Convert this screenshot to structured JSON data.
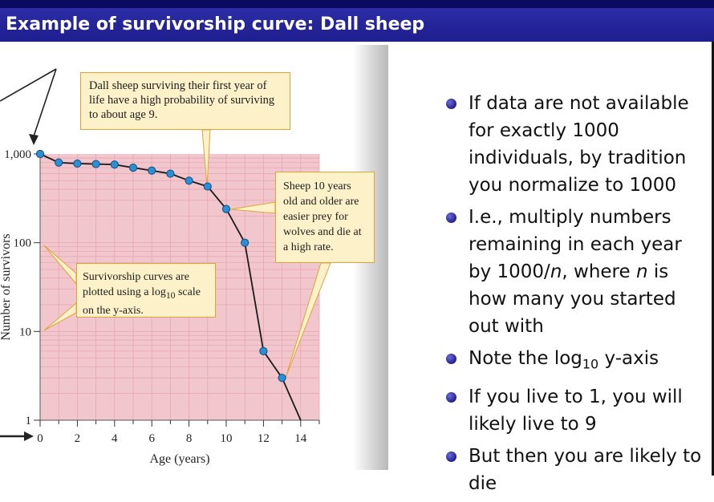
{
  "slide": {
    "title": "Example of survivorship curve: Dall sheep"
  },
  "bullets": [
    "If data are not available for exactly 1000 individuals, by tradition you normalize to 1000",
    "I.e., multiply numbers remaining in each year by 1000/n, where n is how many you started out with",
    "Note the log10 y-axis",
    "If you live to 1, you will likely live to 9",
    "But then you are likely to die"
  ],
  "callouts": {
    "top": "Dall sheep surviving their first year of life have a high probability of surviving to about age 9.",
    "right": "Sheep 10 years old and older are easier prey for wolves and die at a high rate.",
    "left_prefix": "Survivorship curves are plotted using a log",
    "left_sub": "10",
    "left_suffix": " scale on the y-axis."
  },
  "colors": {
    "plot_bg": "#f2c6cd",
    "grid": "#e8a7b1",
    "marker": "#2d8fd3",
    "callout_bg": "#fdf1c9",
    "callout_border": "#e0a33a",
    "title_bar": "#1e1e8e"
  },
  "chart_data": {
    "type": "line",
    "title": "",
    "xlabel": "Age (years)",
    "ylabel": "Number of survivors",
    "yscale": "log10",
    "xlim": [
      0,
      15
    ],
    "ylim": [
      1,
      1000
    ],
    "x_ticks": [
      0,
      2,
      4,
      6,
      8,
      10,
      12,
      14
    ],
    "y_ticks": [
      {
        "value": 1,
        "label": "1"
      },
      {
        "value": 10,
        "label": "10"
      },
      {
        "value": 100,
        "label": "100"
      },
      {
        "value": 1000,
        "label": "1,000"
      }
    ],
    "series": [
      {
        "x": [
          0,
          1,
          2,
          3,
          4,
          5,
          6,
          7,
          8,
          9,
          10,
          11,
          12,
          13
        ],
        "y": [
          1000,
          800,
          780,
          770,
          760,
          700,
          650,
          600,
          500,
          430,
          240,
          100,
          6,
          3
        ]
      }
    ],
    "line_end": {
      "x": 14,
      "y": 1
    },
    "grid": true,
    "legend": "none"
  }
}
